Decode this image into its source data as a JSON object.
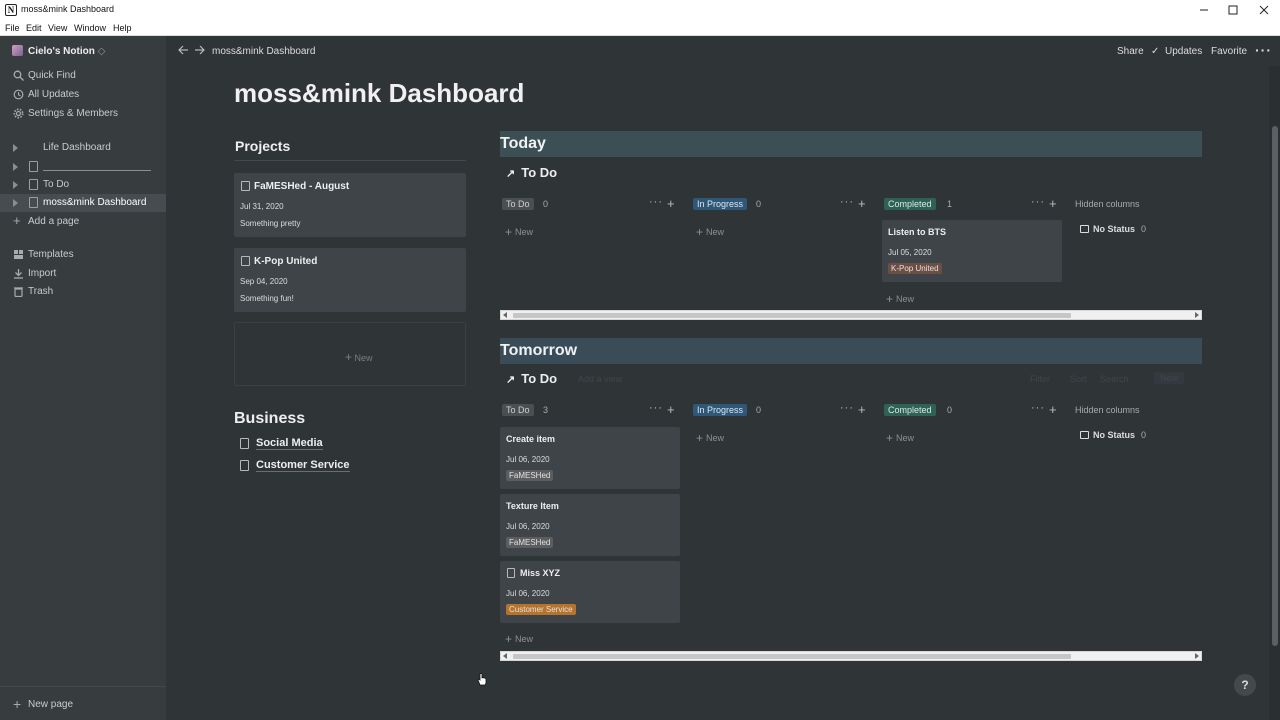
{
  "window": {
    "title": "moss&mink Dashboard"
  },
  "menu": [
    "File",
    "Edit",
    "View",
    "Window",
    "Help"
  ],
  "sidebar": {
    "workspace": "Cielo's Notion",
    "top_items": [
      {
        "label": "Quick Find",
        "icon": "search-icon"
      },
      {
        "label": "All Updates",
        "icon": "clock-icon"
      },
      {
        "label": "Settings & Members",
        "icon": "gear-icon"
      }
    ],
    "pages": [
      {
        "label": "Life Dashboard"
      },
      {
        "label": ""
      },
      {
        "label": "To Do"
      },
      {
        "label": "moss&mink Dashboard",
        "active": true
      }
    ],
    "add_page": "Add a page",
    "tools": [
      {
        "label": "Templates",
        "icon": "templates-icon"
      },
      {
        "label": "Import",
        "icon": "import-icon"
      },
      {
        "label": "Trash",
        "icon": "trash-icon"
      }
    ],
    "new_page": "New page"
  },
  "topbar": {
    "breadcrumb": "moss&mink Dashboard",
    "share": "Share",
    "updates": "Updates",
    "favorite": "Favorite"
  },
  "page": {
    "title": "moss&mink Dashboard",
    "projects_heading": "Projects",
    "projects": [
      {
        "title": "FaMESHed - August",
        "date": "Jul 31, 2020",
        "desc": "Something pretty"
      },
      {
        "title": "K-Pop United",
        "date": "Sep 04, 2020",
        "desc": "Something fun!"
      }
    ],
    "projects_new": "New",
    "business_heading": "Business",
    "business_links": [
      "Social Media",
      "Customer Service"
    ]
  },
  "boards": [
    {
      "section": "Today",
      "view_title": "To Do",
      "columns": [
        {
          "label": "To Do",
          "count": "0",
          "new": "New",
          "cards": []
        },
        {
          "label": "In Progress",
          "count": "0",
          "new": "New",
          "cards": []
        },
        {
          "label": "Completed",
          "count": "1",
          "new": "New",
          "cards": [
            {
              "title": "Listen to BTS",
              "date": "Jul 05, 2020",
              "tag": "K-Pop United"
            }
          ]
        }
      ],
      "hidden_columns": "Hidden columns",
      "no_status": "No Status",
      "no_status_count": "0"
    },
    {
      "section": "Tomorrow",
      "view_title": "To Do",
      "toolbar_faint": [
        "Add a view",
        "Filter",
        "Sort",
        "Search",
        "New"
      ],
      "columns": [
        {
          "label": "To Do",
          "count": "3",
          "new": "New",
          "cards": [
            {
              "title": "Create item",
              "date": "Jul 06, 2020",
              "tag": "FaMESHed"
            },
            {
              "title": "Texture Item",
              "date": "Jul 06, 2020",
              "tag": "FaMESHed"
            },
            {
              "title": "Miss XYZ",
              "date": "Jul 06, 2020",
              "tag": "Customer Service"
            }
          ]
        },
        {
          "label": "In Progress",
          "count": "0",
          "new": "New",
          "cards": []
        },
        {
          "label": "Completed",
          "count": "0",
          "new": "New",
          "cards": []
        }
      ],
      "hidden_columns": "Hidden columns",
      "no_status": "No Status",
      "no_status_count": "0"
    }
  ],
  "help": "?",
  "colors": {
    "tag_famesh": "#5a5e61",
    "tag_kpop": "#6b4f45",
    "tag_customer": "#b5742e"
  }
}
